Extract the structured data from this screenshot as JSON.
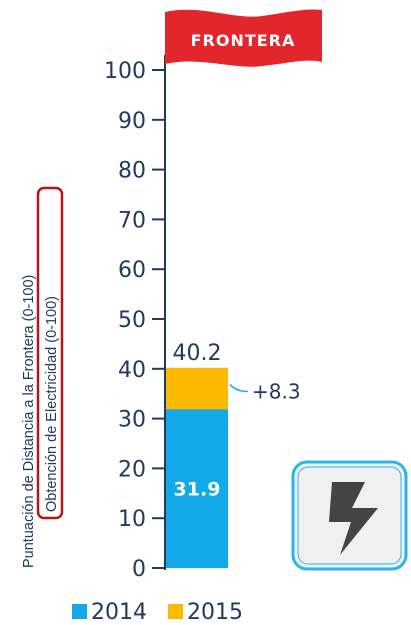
{
  "chart_data": {
    "type": "bar",
    "stacked": true,
    "flag_label": "FRONTERA",
    "ylabel_line1": "Puntuación de Distancia a la Frontera (0-100)",
    "ylabel_line2": "Obtención de Electricidad (0-100)",
    "ylim": [
      0,
      100
    ],
    "yticks": [
      0,
      10,
      20,
      30,
      40,
      50,
      60,
      70,
      80,
      90,
      100
    ],
    "grid": false,
    "legend_position": "bottom",
    "series": [
      {
        "name": "2014",
        "values": [
          31.9
        ],
        "color": "#13a8e8"
      },
      {
        "name": "2015",
        "values": [
          8.3
        ],
        "color": "#fbb900"
      }
    ],
    "total_label": "40.2",
    "base_label": "31.9",
    "delta_label": "+8.3",
    "icon": "lightning-bolt-icon",
    "colors": {
      "text": "#233a5e",
      "flag": "#e3262c",
      "icon_frame": "#2ab6e9",
      "icon_bg": "#f0f0f0",
      "icon_glyph": "#444444"
    }
  }
}
